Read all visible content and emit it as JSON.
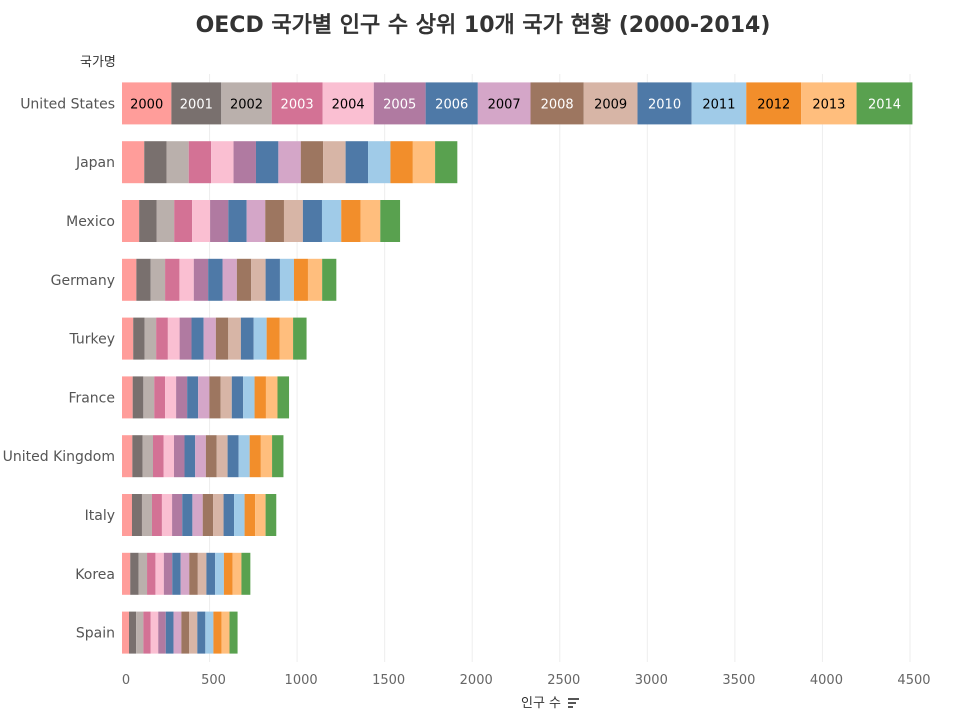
{
  "chart_data": {
    "type": "bar",
    "orientation": "horizontal",
    "stacked": true,
    "title": "OECD 국가별 인구 수 상위 10개 국가 현황 (2000-2014)",
    "xlabel": "인구 수",
    "ylabel": "국가명",
    "xlim": [
      0,
      4700
    ],
    "x_ticks": [
      "0",
      "500",
      "1000",
      "1500",
      "2000",
      "2500",
      "3000",
      "3500",
      "4000",
      "4500"
    ],
    "grid": true,
    "segment_labels_on": "United States",
    "categories": [
      "United States",
      "Japan",
      "Mexico",
      "Germany",
      "Turkey",
      "France",
      "United Kingdom",
      "Italy",
      "Korea",
      "Spain"
    ],
    "series": [
      {
        "name": "2000",
        "color": "#FF9D9A",
        "text_color": "#000000",
        "values": [
          282,
          127,
          98,
          82,
          64,
          61,
          59,
          57,
          47,
          40
        ]
      },
      {
        "name": "2001",
        "color": "#79706E",
        "text_color": "#FFFFFF",
        "values": [
          285,
          127,
          99,
          82,
          65,
          61,
          59,
          57,
          48,
          41
        ]
      },
      {
        "name": "2002",
        "color": "#BAB0AC",
        "text_color": "#000000",
        "values": [
          288,
          127,
          101,
          82,
          66,
          62,
          59,
          57,
          48,
          41
        ]
      },
      {
        "name": "2003",
        "color": "#D37295",
        "text_color": "#FFFFFF",
        "values": [
          290,
          128,
          102,
          82,
          67,
          62,
          60,
          57,
          48,
          42
        ]
      },
      {
        "name": "2004",
        "color": "#FABFD2",
        "text_color": "#000000",
        "values": [
          293,
          128,
          103,
          82,
          67,
          63,
          60,
          58,
          48,
          43
        ]
      },
      {
        "name": "2005",
        "color": "#B07AA1",
        "text_color": "#FFFFFF",
        "values": [
          296,
          128,
          104,
          82,
          68,
          63,
          60,
          58,
          48,
          43
        ]
      },
      {
        "name": "2006",
        "color": "#4E79A7",
        "text_color": "#FFFFFF",
        "values": [
          298,
          128,
          105,
          82,
          69,
          63,
          61,
          58,
          48,
          44
        ]
      },
      {
        "name": "2007",
        "color": "#D4A6C8",
        "text_color": "#000000",
        "values": [
          301,
          128,
          106,
          82,
          70,
          64,
          61,
          59,
          49,
          45
        ]
      },
      {
        "name": "2008",
        "color": "#9D7660",
        "text_color": "#FFFFFF",
        "values": [
          304,
          128,
          107,
          82,
          71,
          64,
          62,
          59,
          49,
          45
        ]
      },
      {
        "name": "2009",
        "color": "#D7B5A6",
        "text_color": "#000000",
        "values": [
          307,
          128,
          108,
          82,
          72,
          64,
          62,
          60,
          49,
          46
        ]
      },
      {
        "name": "2010",
        "color": "#4E79A7",
        "text_color": "#FFFFFF",
        "values": [
          309,
          128,
          109,
          82,
          73,
          65,
          63,
          60,
          50,
          46
        ]
      },
      {
        "name": "2011",
        "color": "#A0CBE8",
        "text_color": "#000000",
        "values": [
          312,
          128,
          110,
          80,
          74,
          65,
          63,
          60,
          50,
          46
        ]
      },
      {
        "name": "2012",
        "color": "#F28E2B",
        "text_color": "#000000",
        "values": [
          314,
          128,
          111,
          80,
          75,
          65,
          64,
          60,
          50,
          46
        ]
      },
      {
        "name": "2013",
        "color": "#FFBE7D",
        "text_color": "#000000",
        "values": [
          316,
          127,
          112,
          81,
          76,
          66,
          64,
          60,
          50,
          46
        ]
      },
      {
        "name": "2014",
        "color": "#59A14F",
        "text_color": "#FFFFFF",
        "values": [
          319,
          127,
          113,
          81,
          77,
          66,
          65,
          61,
          51,
          46
        ]
      }
    ]
  }
}
